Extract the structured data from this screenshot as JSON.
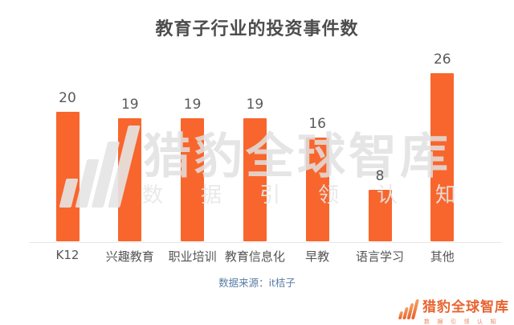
{
  "title": "教育子行业的投资事件数",
  "chart_data": {
    "type": "bar",
    "title": "教育子行业的投资事件数",
    "categories": [
      "K12",
      "兴趣教育",
      "职业培训",
      "教育信息化",
      "早教",
      "语言学习",
      "其他"
    ],
    "values": [
      20,
      19,
      19,
      19,
      16,
      8,
      26
    ],
    "slugs": [
      "k12",
      "hobby-education",
      "vocational-training",
      "education-informatization",
      "early-education",
      "language-learning",
      "other"
    ],
    "xlabel": "",
    "ylabel": "",
    "ylim": [
      0,
      28
    ],
    "grid": false,
    "legend": "none",
    "bar_color": "#f8662d",
    "value_label_color": "#595959"
  },
  "source_note": "数据来源：it桔子",
  "watermark": {
    "text": "猎豹全球智库",
    "tagline": "数据引领认知",
    "icon": "rising-bars-icon",
    "color": "#e1e1e1"
  },
  "footer_logo": {
    "name": "猎豹全球智库",
    "tagline": "数据引领认知",
    "icon": "rising-bars-icon",
    "color": "#e8632f"
  }
}
